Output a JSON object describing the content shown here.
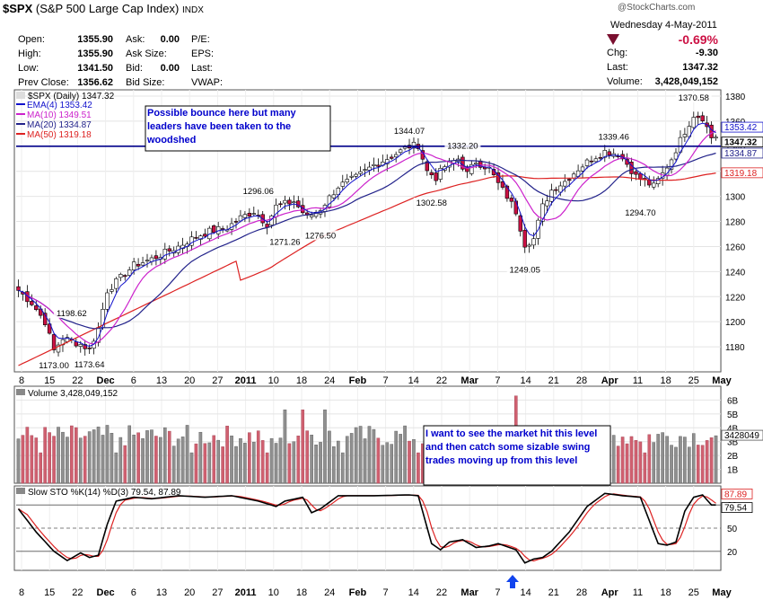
{
  "header": {
    "symbol": "$SPX",
    "name": "(S&P 500 Large Cap Index)",
    "exchange": "INDX",
    "rows": [
      {
        "l1": "Open:",
        "v1": "1355.90",
        "l2": "Ask:",
        "v2": "0.00",
        "l3": "P/E:"
      },
      {
        "l1": "High:",
        "v1": "1355.90",
        "l2": "Ask Size:",
        "v2": "",
        "l3": "EPS:"
      },
      {
        "l1": "Low:",
        "v1": "1341.50",
        "l2": "Bid:",
        "v2": "0.00",
        "l3": "Last:"
      },
      {
        "l1": "Prev Close:",
        "v1": "1356.62",
        "l2": "Bid Size:",
        "v2": "",
        "l3": "VWAP:"
      }
    ],
    "date": "Wednesday  4-May-2011",
    "pct_change": "-0.69%",
    "chg_label": "Chg:",
    "chg_value": "-9.30",
    "last_label": "Last:",
    "last_value": "1347.32",
    "volume_label": "Volume:",
    "volume_value": "3,428,049,152",
    "watermark": "@StockCharts.com"
  },
  "colors": {
    "up": "#ffffff",
    "down": "#cc1144",
    "ema4": "#1111cc",
    "ma10": "#cc22cc",
    "ma20": "#22228a",
    "ma50": "#dd2222",
    "support": "#00008b",
    "vol_up": "#909090",
    "vol_down": "#d06070",
    "k_line": "#000000",
    "d_line": "#dd2222"
  },
  "chart_data": [
    {
      "type": "candlestick",
      "title": "$SPX (Daily) 1347.32",
      "legend": [
        {
          "name": "EMA(4) 1353.42",
          "color": "#1111cc"
        },
        {
          "name": "MA(10) 1349.51",
          "color": "#cc22cc"
        },
        {
          "name": "MA(20) 1334.87",
          "color": "#22228a"
        },
        {
          "name": "MA(50) 1319.18",
          "color": "#dd2222"
        }
      ],
      "ylim": [
        1160,
        1385
      ],
      "yticks": [
        1180,
        1200,
        1220,
        1240,
        1260,
        1280,
        1300,
        1320,
        1340,
        1360,
        1380
      ],
      "x_labels": [
        "8",
        "15",
        "22",
        "Dec",
        "6",
        "13",
        "20",
        "27",
        "2011",
        "10",
        "18",
        "24",
        "Feb",
        "7",
        "14",
        "22",
        "Mar",
        "7",
        "14",
        "21",
        "28",
        "Apr",
        "11",
        "18",
        "25",
        "May"
      ],
      "close_anchors": [
        [
          0,
          1225
        ],
        [
          3,
          1215
        ],
        [
          6,
          1200
        ],
        [
          8,
          1177
        ],
        [
          10,
          1187
        ],
        [
          14,
          1182
        ],
        [
          16,
          1178
        ],
        [
          18,
          1195
        ],
        [
          20,
          1225
        ],
        [
          23,
          1235
        ],
        [
          26,
          1245
        ],
        [
          30,
          1250
        ],
        [
          33,
          1255
        ],
        [
          36,
          1260
        ],
        [
          40,
          1268
        ],
        [
          43,
          1272
        ],
        [
          47,
          1275
        ],
        [
          50,
          1283
        ],
        [
          53,
          1288
        ],
        [
          56,
          1278
        ],
        [
          58,
          1292
        ],
        [
          62,
          1296
        ],
        [
          65,
          1283
        ],
        [
          68,
          1290
        ],
        [
          72,
          1308
        ],
        [
          76,
          1315
        ],
        [
          80,
          1325
        ],
        [
          84,
          1332
        ],
        [
          88,
          1340
        ],
        [
          90,
          1341
        ],
        [
          92,
          1320
        ],
        [
          94,
          1315
        ],
        [
          96,
          1324
        ],
        [
          99,
          1330
        ],
        [
          101,
          1318
        ],
        [
          103,
          1328
        ],
        [
          106,
          1322
        ],
        [
          108,
          1310
        ],
        [
          110,
          1300
        ],
        [
          112,
          1288
        ],
        [
          114,
          1262
        ],
        [
          116,
          1266
        ],
        [
          118,
          1292
        ],
        [
          120,
          1305
        ],
        [
          123,
          1312
        ],
        [
          126,
          1322
        ],
        [
          129,
          1330
        ],
        [
          132,
          1336
        ],
        [
          135,
          1334
        ],
        [
          137,
          1326
        ],
        [
          139,
          1316
        ],
        [
          141,
          1312
        ],
        [
          143,
          1308
        ],
        [
          145,
          1318
        ],
        [
          147,
          1330
        ],
        [
          150,
          1352
        ],
        [
          152,
          1365
        ],
        [
          154,
          1363
        ],
        [
          156,
          1347
        ]
      ],
      "price_labels": [
        {
          "i": 8,
          "text": "1173.00",
          "pos": "below"
        },
        {
          "i": 12,
          "text": "1198.62",
          "pos": "above"
        },
        {
          "i": 16,
          "text": "1173.64",
          "pos": "below"
        },
        {
          "i": 54,
          "text": "1296.06",
          "pos": "above"
        },
        {
          "i": 60,
          "text": "1271.26",
          "pos": "below"
        },
        {
          "i": 68,
          "text": "1276.50",
          "pos": "below"
        },
        {
          "i": 88,
          "text": "1344.07",
          "pos": "above"
        },
        {
          "i": 100,
          "text": "1332.20",
          "pos": "above"
        },
        {
          "i": 93,
          "text": "1302.58",
          "pos": "below"
        },
        {
          "i": 114,
          "text": "1249.05",
          "pos": "below"
        },
        {
          "i": 134,
          "text": "1339.46",
          "pos": "above"
        },
        {
          "i": 140,
          "text": "1294.70",
          "pos": "below"
        },
        {
          "i": 152,
          "text": "1370.58",
          "pos": "above"
        }
      ],
      "current_labels": [
        {
          "text": "1353.42",
          "value": 1353.42,
          "color": "#1111cc"
        },
        {
          "text": "1347.32",
          "value": 1347.32,
          "color": "#000000"
        },
        {
          "text": "1334.87",
          "value": 1334.87,
          "color": "#22228a"
        },
        {
          "text": "1319.18",
          "value": 1319.18,
          "color": "#dd2222"
        }
      ],
      "horizontal_line": 1340,
      "annotation": "Possible bounce here but many leaders have been taken to the woodshed"
    },
    {
      "type": "bar",
      "title": "Volume 3,428,049,152",
      "ylim": [
        0,
        7
      ],
      "yticks": [
        {
          "v": 1,
          "t": "1B"
        },
        {
          "v": 2,
          "t": "2B"
        },
        {
          "v": 3,
          "t": "3B"
        },
        {
          "v": 4,
          "t": "4B"
        },
        {
          "v": 5,
          "t": "5B"
        },
        {
          "v": 6,
          "t": "6B"
        }
      ],
      "current_label": "3428049",
      "current_value": 3.43,
      "annotation": "I want to see the market hit this level and then catch some sizable swing trades moving up from this level"
    },
    {
      "type": "line",
      "title": "Slow STO %K(14) %D(3) 79.54, 87.89",
      "series": [
        {
          "name": "%K(14)"
        },
        {
          "name": "%D(3)"
        }
      ],
      "ylim": [
        0,
        100
      ],
      "yticks": [
        20,
        50,
        80
      ],
      "k_anchors": [
        [
          0,
          75
        ],
        [
          4,
          45
        ],
        [
          8,
          20
        ],
        [
          11,
          8
        ],
        [
          14,
          18
        ],
        [
          16,
          12
        ],
        [
          18,
          15
        ],
        [
          20,
          55
        ],
        [
          22,
          85
        ],
        [
          26,
          90
        ],
        [
          30,
          88
        ],
        [
          36,
          92
        ],
        [
          42,
          90
        ],
        [
          48,
          92
        ],
        [
          54,
          85
        ],
        [
          58,
          78
        ],
        [
          60,
          85
        ],
        [
          64,
          90
        ],
        [
          66,
          70
        ],
        [
          68,
          75
        ],
        [
          72,
          92
        ],
        [
          80,
          92
        ],
        [
          88,
          93
        ],
        [
          90,
          92
        ],
        [
          93,
          30
        ],
        [
          95,
          22
        ],
        [
          97,
          32
        ],
        [
          100,
          35
        ],
        [
          103,
          25
        ],
        [
          106,
          27
        ],
        [
          108,
          30
        ],
        [
          110,
          26
        ],
        [
          112,
          22
        ],
        [
          114,
          5
        ],
        [
          116,
          10
        ],
        [
          118,
          12
        ],
        [
          120,
          20
        ],
        [
          124,
          45
        ],
        [
          128,
          78
        ],
        [
          132,
          95
        ],
        [
          136,
          92
        ],
        [
          140,
          90
        ],
        [
          144,
          30
        ],
        [
          146,
          28
        ],
        [
          148,
          32
        ],
        [
          150,
          72
        ],
        [
          152,
          90
        ],
        [
          154,
          93
        ],
        [
          156,
          80
        ]
      ],
      "current_labels": [
        {
          "text": "87.89",
          "value": 87.89,
          "color": "#dd2222"
        },
        {
          "text": "79.54",
          "value": 79.54,
          "color": "#000000"
        }
      ]
    }
  ]
}
